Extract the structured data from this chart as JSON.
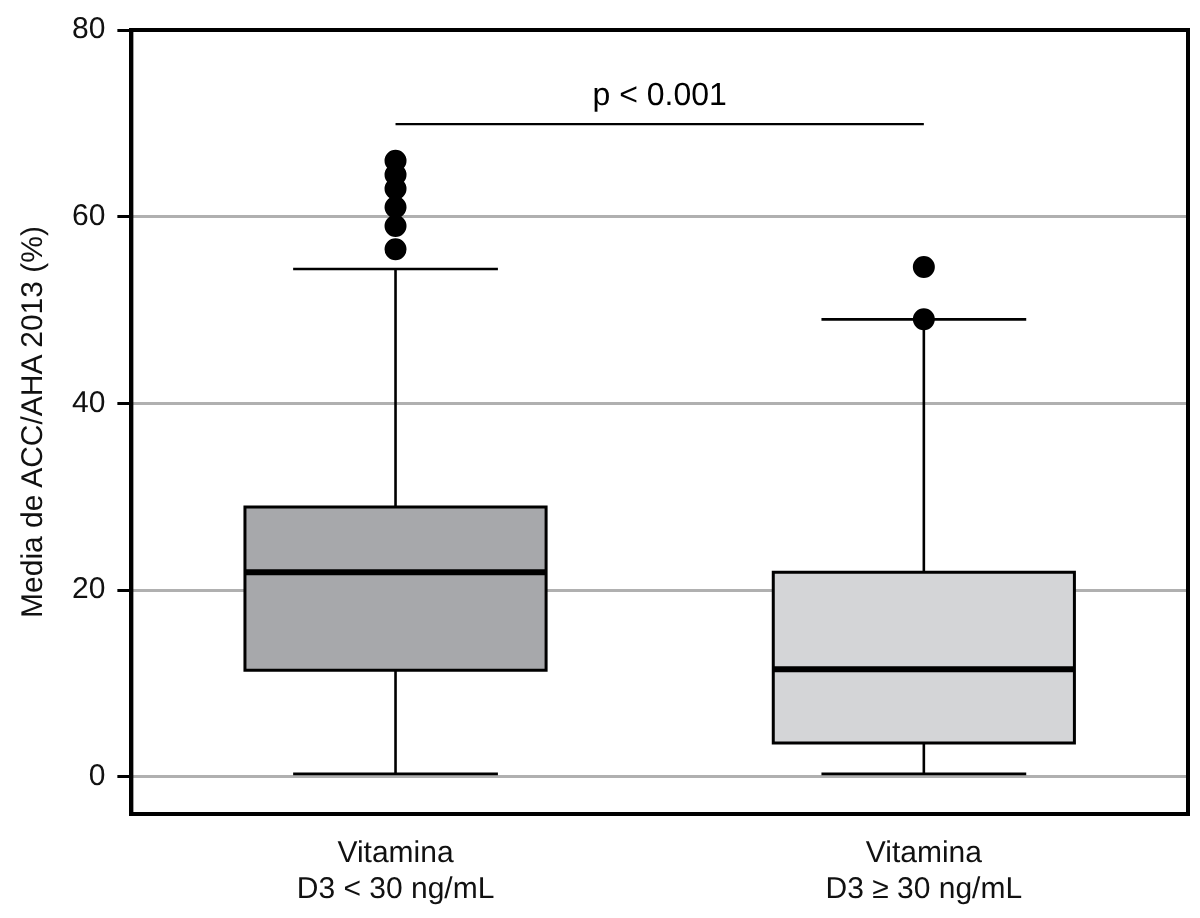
{
  "chart_data": {
    "type": "box",
    "ylabel": "Media de ACC/AHA 2013 (%)",
    "categories": [
      "Vitamina\nD3 < 30 ng/mL",
      "Vitamina\nD3 ≥ 30 ng/mL"
    ],
    "colors": [
      "#a7a8ab",
      "#d4d5d7"
    ],
    "boxes": [
      {
        "low": 0.3,
        "q1": 11.4,
        "median": 21.9,
        "q3": 28.9,
        "high": 54.4,
        "outliers": [
          56.5,
          59,
          61,
          63,
          64.5,
          66
        ]
      },
      {
        "low": 0.3,
        "q1": 3.6,
        "median": 11.5,
        "q3": 21.9,
        "high": 49,
        "outliers": [
          49,
          54.6
        ]
      }
    ],
    "ylim": [
      -4,
      80
    ],
    "yticks": [
      0,
      20,
      40,
      60,
      80
    ],
    "grid": "y",
    "annotations": [
      "p < 0.001"
    ]
  }
}
